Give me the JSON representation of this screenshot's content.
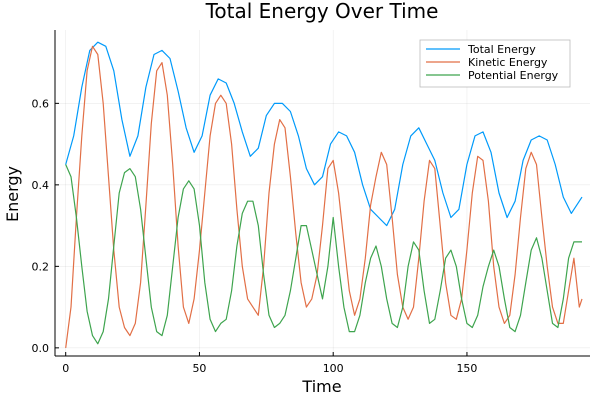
{
  "chart_data": {
    "type": "line",
    "title": "Total Energy Over Time",
    "xlabel": "Time",
    "ylabel": "Energy",
    "xlim": [
      -4,
      196
    ],
    "ylim": [
      -0.02,
      0.78
    ],
    "xticks": [
      0,
      50,
      100,
      150
    ],
    "yticks": [
      0.0,
      0.2,
      0.4,
      0.6
    ],
    "grid": true,
    "legend_position": "top-right",
    "series": [
      {
        "name": "Total Energy",
        "color": "#009AFA",
        "x": [
          0,
          3,
          6,
          9,
          12,
          15,
          18,
          21,
          24,
          27,
          30,
          33,
          36,
          39,
          42,
          45,
          48,
          51,
          54,
          57,
          60,
          63,
          66,
          69,
          72,
          75,
          78,
          81,
          84,
          87,
          90,
          93,
          96,
          99,
          102,
          105,
          108,
          111,
          114,
          117,
          120,
          123,
          126,
          129,
          132,
          135,
          138,
          141,
          144,
          147,
          150,
          153,
          156,
          159,
          162,
          165,
          168,
          171,
          174,
          177,
          180,
          183,
          186,
          189,
          192,
          193
        ],
        "values": [
          0.45,
          0.52,
          0.64,
          0.73,
          0.75,
          0.74,
          0.68,
          0.56,
          0.47,
          0.52,
          0.64,
          0.72,
          0.73,
          0.71,
          0.63,
          0.54,
          0.48,
          0.52,
          0.62,
          0.66,
          0.65,
          0.6,
          0.53,
          0.47,
          0.49,
          0.57,
          0.6,
          0.6,
          0.58,
          0.52,
          0.44,
          0.4,
          0.42,
          0.5,
          0.53,
          0.52,
          0.48,
          0.4,
          0.34,
          0.32,
          0.3,
          0.34,
          0.45,
          0.52,
          0.54,
          0.5,
          0.46,
          0.38,
          0.32,
          0.34,
          0.45,
          0.52,
          0.53,
          0.48,
          0.38,
          0.32,
          0.36,
          0.46,
          0.51,
          0.52,
          0.51,
          0.45,
          0.37,
          0.33,
          0.36,
          0.37
        ]
      },
      {
        "name": "Kinetic Energy",
        "color": "#E26F46",
        "x": [
          0,
          2,
          4,
          6,
          8,
          10,
          12,
          14,
          16,
          18,
          20,
          22,
          24,
          26,
          28,
          30,
          32,
          34,
          36,
          38,
          40,
          42,
          44,
          46,
          48,
          50,
          52,
          54,
          56,
          58,
          60,
          62,
          64,
          66,
          68,
          70,
          72,
          74,
          76,
          78,
          80,
          82,
          84,
          86,
          88,
          90,
          92,
          94,
          96,
          98,
          100,
          102,
          104,
          106,
          108,
          110,
          112,
          114,
          116,
          118,
          120,
          122,
          124,
          126,
          128,
          130,
          132,
          134,
          136,
          138,
          140,
          142,
          144,
          146,
          148,
          150,
          152,
          154,
          156,
          158,
          160,
          162,
          164,
          166,
          168,
          170,
          172,
          174,
          176,
          178,
          180,
          182,
          184,
          186,
          188,
          190,
          192,
          193
        ],
        "values": [
          0.0,
          0.1,
          0.32,
          0.52,
          0.68,
          0.74,
          0.72,
          0.6,
          0.42,
          0.24,
          0.1,
          0.05,
          0.03,
          0.06,
          0.16,
          0.35,
          0.55,
          0.68,
          0.7,
          0.62,
          0.45,
          0.25,
          0.1,
          0.06,
          0.12,
          0.24,
          0.38,
          0.52,
          0.6,
          0.62,
          0.6,
          0.5,
          0.34,
          0.2,
          0.12,
          0.1,
          0.08,
          0.2,
          0.38,
          0.5,
          0.56,
          0.54,
          0.42,
          0.28,
          0.16,
          0.1,
          0.12,
          0.18,
          0.3,
          0.44,
          0.46,
          0.38,
          0.26,
          0.14,
          0.08,
          0.12,
          0.22,
          0.35,
          0.42,
          0.48,
          0.45,
          0.32,
          0.18,
          0.1,
          0.07,
          0.1,
          0.22,
          0.36,
          0.46,
          0.44,
          0.3,
          0.16,
          0.08,
          0.07,
          0.12,
          0.24,
          0.38,
          0.47,
          0.46,
          0.36,
          0.2,
          0.1,
          0.06,
          0.08,
          0.18,
          0.32,
          0.44,
          0.48,
          0.45,
          0.32,
          0.2,
          0.1,
          0.06,
          0.06,
          0.14,
          0.22,
          0.1,
          0.12
        ]
      },
      {
        "name": "Potential Energy",
        "color": "#3EA44E",
        "x": [
          0,
          2,
          4,
          6,
          8,
          10,
          12,
          14,
          16,
          18,
          20,
          22,
          24,
          26,
          28,
          30,
          32,
          34,
          36,
          38,
          40,
          42,
          44,
          46,
          48,
          50,
          52,
          54,
          56,
          58,
          60,
          62,
          64,
          66,
          68,
          70,
          72,
          74,
          76,
          78,
          80,
          82,
          84,
          86,
          88,
          90,
          92,
          94,
          96,
          98,
          100,
          102,
          104,
          106,
          108,
          110,
          112,
          114,
          116,
          118,
          120,
          122,
          124,
          126,
          128,
          130,
          132,
          134,
          136,
          138,
          140,
          142,
          144,
          146,
          148,
          150,
          152,
          154,
          156,
          158,
          160,
          162,
          164,
          166,
          168,
          170,
          172,
          174,
          176,
          178,
          180,
          182,
          184,
          186,
          188,
          190,
          192,
          193
        ],
        "values": [
          0.45,
          0.42,
          0.32,
          0.2,
          0.09,
          0.03,
          0.01,
          0.04,
          0.12,
          0.25,
          0.38,
          0.43,
          0.44,
          0.42,
          0.34,
          0.22,
          0.1,
          0.04,
          0.03,
          0.08,
          0.2,
          0.32,
          0.39,
          0.41,
          0.39,
          0.3,
          0.16,
          0.07,
          0.04,
          0.06,
          0.07,
          0.14,
          0.25,
          0.33,
          0.36,
          0.36,
          0.3,
          0.18,
          0.08,
          0.05,
          0.06,
          0.08,
          0.14,
          0.22,
          0.3,
          0.3,
          0.24,
          0.18,
          0.12,
          0.2,
          0.32,
          0.2,
          0.1,
          0.04,
          0.04,
          0.08,
          0.16,
          0.22,
          0.25,
          0.2,
          0.12,
          0.06,
          0.05,
          0.1,
          0.2,
          0.26,
          0.24,
          0.14,
          0.06,
          0.07,
          0.14,
          0.22,
          0.24,
          0.2,
          0.12,
          0.06,
          0.05,
          0.08,
          0.15,
          0.2,
          0.24,
          0.2,
          0.12,
          0.05,
          0.04,
          0.08,
          0.16,
          0.24,
          0.27,
          0.22,
          0.14,
          0.06,
          0.05,
          0.12,
          0.22,
          0.26,
          0.26,
          0.26
        ]
      }
    ]
  }
}
